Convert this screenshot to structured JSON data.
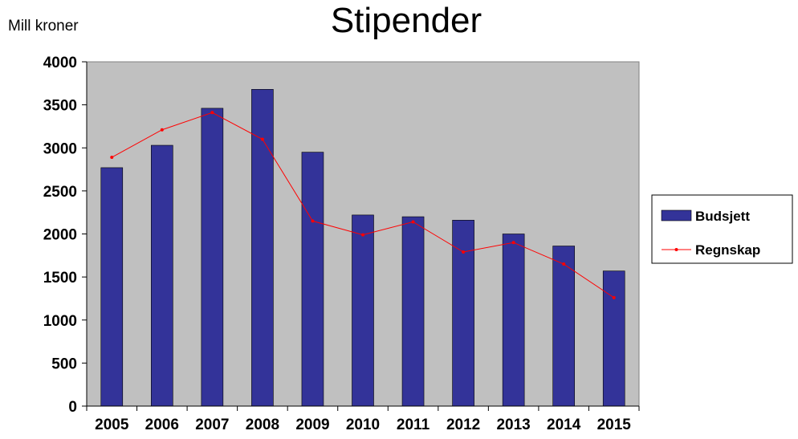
{
  "chart_data": {
    "type": "bar",
    "title": "Stipender",
    "ylabel": "Mill kroner",
    "xlabel": "",
    "categories": [
      "2005",
      "2006",
      "2007",
      "2008",
      "2009",
      "2010",
      "2011",
      "2012",
      "2013",
      "2014",
      "2015"
    ],
    "ylim": [
      0,
      4000
    ],
    "yticks": [
      0,
      500,
      1000,
      1500,
      2000,
      2500,
      3000,
      3500,
      4000
    ],
    "grid": false,
    "legend_position": "right",
    "series": [
      {
        "name": "Budsjett",
        "type": "bar",
        "color": "#333399",
        "values": [
          2770,
          3030,
          3460,
          3680,
          2950,
          2220,
          2200,
          2160,
          2000,
          1860,
          1570
        ]
      },
      {
        "name": "Regnskap",
        "type": "line",
        "color": "#ff0000",
        "values": [
          2890,
          3210,
          3410,
          3100,
          2150,
          1990,
          2140,
          1790,
          1900,
          1650,
          1260
        ]
      }
    ],
    "plot_background": "#c0c0c0"
  }
}
